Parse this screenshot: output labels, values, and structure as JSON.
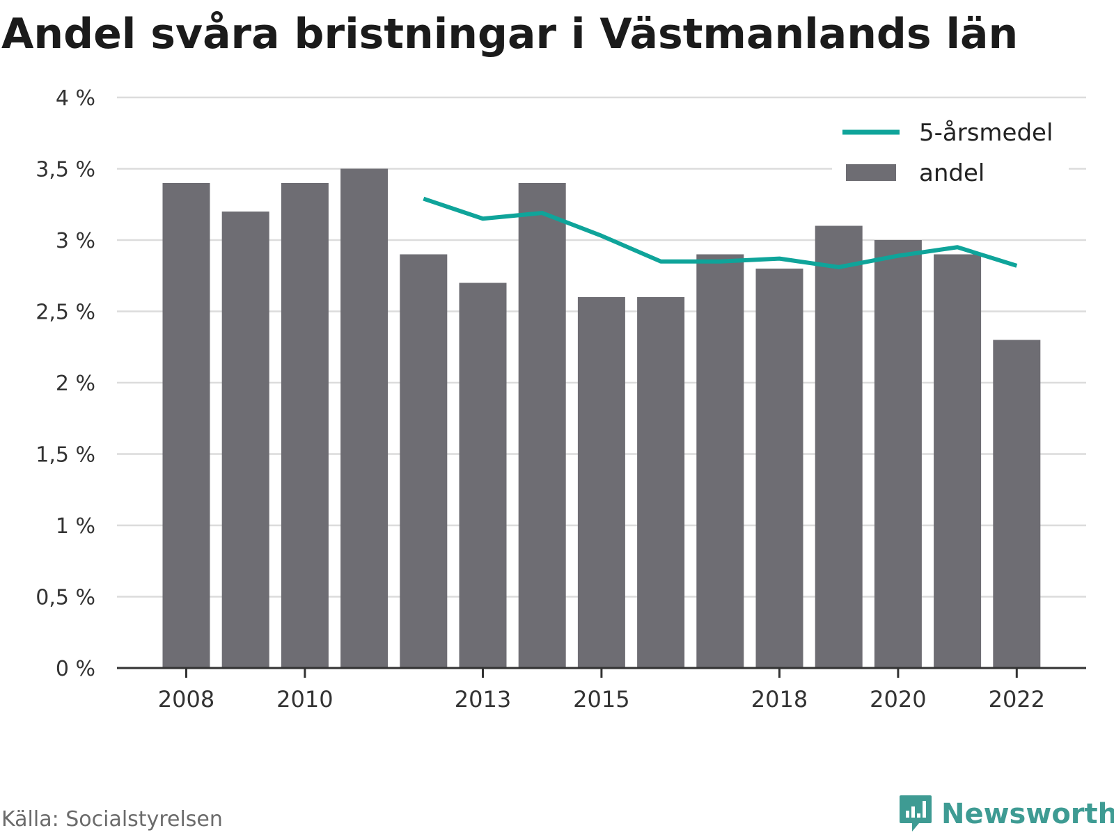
{
  "title": "Andel svåra bristningar i Västmanlands län",
  "source": "Källa: Socialstyrelsen",
  "brand": "Newsworthy",
  "colors": {
    "bar": "#6e6d73",
    "line": "#0fa49a",
    "grid": "#dcdcdc",
    "axis": "#333333",
    "brand": "#3e9b93"
  },
  "chart_data": {
    "type": "bar",
    "x": [
      2008,
      2009,
      2010,
      2011,
      2012,
      2013,
      2014,
      2015,
      2016,
      2017,
      2018,
      2019,
      2020,
      2021,
      2022
    ],
    "x_tick_labels": [
      "2008",
      "2010",
      "2013",
      "2015",
      "2018",
      "2020",
      "2022"
    ],
    "x_tick_values": [
      2008,
      2010,
      2013,
      2015,
      2018,
      2020,
      2022
    ],
    "y_tick_labels": [
      "0 %",
      "0,5 %",
      "1 %",
      "1,5 %",
      "2 %",
      "2,5 %",
      "3 %",
      "3,5 %",
      "4 %"
    ],
    "y_tick_values": [
      0,
      0.5,
      1,
      1.5,
      2,
      2.5,
      3,
      3.5,
      4
    ],
    "ylim": [
      0,
      4
    ],
    "grid": true,
    "legend_position": "top-right",
    "series": [
      {
        "name": "andel",
        "kind": "bar",
        "x": [
          2008,
          2009,
          2010,
          2011,
          2012,
          2013,
          2014,
          2015,
          2016,
          2017,
          2018,
          2019,
          2020,
          2021,
          2022
        ],
        "values": [
          3.4,
          3.2,
          3.4,
          3.5,
          2.9,
          2.7,
          3.4,
          2.6,
          2.6,
          2.9,
          2.8,
          3.1,
          3.0,
          2.9,
          2.3
        ]
      },
      {
        "name": "5-årsmedel",
        "kind": "line",
        "x": [
          2012,
          2013,
          2014,
          2015,
          2016,
          2017,
          2018,
          2019,
          2020,
          2021,
          2022
        ],
        "values": [
          3.29,
          3.15,
          3.19,
          3.03,
          2.85,
          2.85,
          2.87,
          2.81,
          2.89,
          2.95,
          2.82
        ]
      }
    ]
  }
}
